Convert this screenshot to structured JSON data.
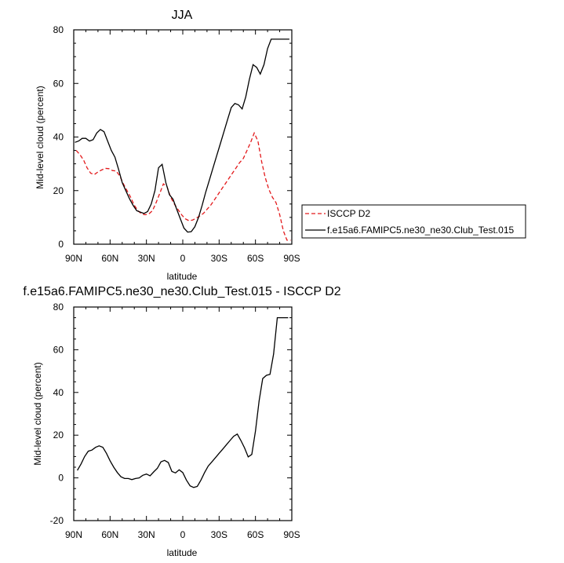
{
  "chart_data": [
    {
      "type": "line",
      "title": "JJA",
      "xlabel": "latitude",
      "ylabel": "Mid-level cloud (percent)",
      "xlim": [
        90,
        -90
      ],
      "ylim": [
        0,
        80
      ],
      "x_ticks": [
        90,
        60,
        30,
        0,
        -30,
        -60,
        -90
      ],
      "x_tick_labels": [
        "90N",
        "60N",
        "30N",
        "0",
        "30S",
        "60S",
        "90S"
      ],
      "y_ticks": [
        0,
        20,
        40,
        60,
        80
      ],
      "legend_position": "right",
      "series": [
        {
          "name": "ISCCP D2",
          "color": "#e31a1c",
          "dash": "dashed",
          "x": [
            88,
            85,
            82,
            79,
            76,
            73,
            70,
            67,
            64,
            61,
            58,
            55,
            52,
            49,
            46,
            43,
            40,
            37,
            34,
            31,
            28,
            25,
            22,
            19,
            16,
            13,
            10,
            7,
            4,
            1,
            -2,
            -5,
            -8,
            -11,
            -14,
            -17,
            -20,
            -23,
            -26,
            -29,
            -32,
            -35,
            -38,
            -41,
            -44,
            -47,
            -50,
            -53,
            -56,
            -59,
            -62,
            -65,
            -68,
            -71,
            -74,
            -77,
            -80,
            -83,
            -86,
            -89
          ],
          "y": [
            35,
            33.5,
            31.5,
            28.5,
            26.5,
            26,
            27,
            27.7,
            28.3,
            28.2,
            27.5,
            27.3,
            25.5,
            22.5,
            20,
            17.5,
            14.5,
            12.5,
            11.3,
            11,
            11.3,
            12.5,
            15.5,
            19,
            22.5,
            21.5,
            17.5,
            15,
            13,
            11,
            9.5,
            8.8,
            9,
            9.7,
            10.5,
            11.5,
            13,
            14.5,
            16.5,
            18.5,
            20.5,
            22.5,
            24.5,
            26.5,
            28.5,
            30.5,
            32,
            35,
            38,
            41.5,
            38.5,
            31,
            25,
            20.5,
            17.5,
            15.5,
            11,
            5,
            1.5,
            1.5
          ]
        },
        {
          "name": "f.e15a6.FAMIPC5.ne30_ne30.Club_Test.015",
          "color": "#000000",
          "dash": "solid",
          "x": [
            89,
            86,
            83,
            80,
            77,
            74,
            71,
            68,
            65,
            62,
            59,
            56,
            53,
            50,
            47,
            44,
            41,
            38,
            35,
            32,
            29,
            26,
            23,
            20,
            17,
            14,
            11,
            8,
            5,
            2,
            -1,
            -4,
            -7,
            -10,
            -13,
            -16,
            -19,
            -22,
            -25,
            -28,
            -31,
            -34,
            -37,
            -40,
            -43,
            -46,
            -49,
            -52,
            -55,
            -58,
            -61,
            -64,
            -67,
            -70,
            -73,
            -76,
            -79,
            -82,
            -85,
            -88
          ],
          "y": [
            38,
            38.5,
            39.5,
            39.5,
            38.5,
            39,
            41.5,
            42.8,
            42,
            38.5,
            35,
            32.5,
            28,
            23,
            20,
            17,
            14.5,
            12.5,
            12,
            11.5,
            12.2,
            15,
            20,
            28.5,
            29.8,
            23,
            18.5,
            16.8,
            13,
            9.5,
            6,
            4.5,
            4.7,
            6.5,
            10,
            14.5,
            19.5,
            24,
            28.5,
            33,
            37.5,
            42,
            46.5,
            51,
            52.5,
            52,
            50.5,
            55,
            61.5,
            67,
            66,
            63.5,
            67,
            73,
            76.5,
            76.5,
            76.5,
            76.5,
            76.5,
            76.5
          ]
        }
      ]
    },
    {
      "type": "line",
      "title": "f.e15a6.FAMIPC5.ne30_ne30.Club_Test.015 - ISCCP D2",
      "xlabel": "latitude",
      "ylabel": "Mid-level cloud (percent)",
      "xlim": [
        90,
        -90
      ],
      "ylim": [
        -20,
        80
      ],
      "x_ticks": [
        90,
        60,
        30,
        0,
        -30,
        -60,
        -90
      ],
      "x_tick_labels": [
        "90N",
        "60N",
        "30N",
        "0",
        "30S",
        "60S",
        "90S"
      ],
      "y_ticks": [
        -20,
        0,
        20,
        40,
        60,
        80
      ],
      "series": [
        {
          "color": "#000000",
          "dash": "solid",
          "x": [
            87,
            84,
            81,
            78,
            75,
            72,
            69,
            66,
            63,
            60,
            57,
            54,
            51,
            48,
            45,
            42,
            39,
            36,
            33,
            30,
            27,
            24,
            21,
            18,
            15,
            12,
            9,
            6,
            3,
            0,
            -3,
            -6,
            -9,
            -12,
            -15,
            -18,
            -21,
            -24,
            -27,
            -30,
            -33,
            -36,
            -39,
            -42,
            -45,
            -48,
            -51,
            -54,
            -57,
            -60,
            -63,
            -66,
            -69,
            -72,
            -75,
            -78,
            -81,
            -84,
            -87
          ],
          "y": [
            3.5,
            6.5,
            10,
            12.5,
            13,
            14.3,
            15,
            14.3,
            11.5,
            8,
            5,
            2.5,
            0.5,
            -0.3,
            -0.3,
            -0.8,
            -0.3,
            0,
            1.2,
            1.8,
            1,
            2.8,
            4.5,
            7.5,
            8.2,
            7.2,
            3,
            2.3,
            3.8,
            2.5,
            -1,
            -3.7,
            -4.5,
            -4,
            -1,
            2.5,
            5.5,
            7.5,
            9.5,
            11.5,
            13.5,
            15.5,
            17.5,
            19.5,
            20.5,
            17.5,
            14,
            9.8,
            11,
            22,
            36,
            46.5,
            48,
            48.5,
            58,
            75,
            75,
            75,
            75
          ]
        }
      ]
    }
  ]
}
